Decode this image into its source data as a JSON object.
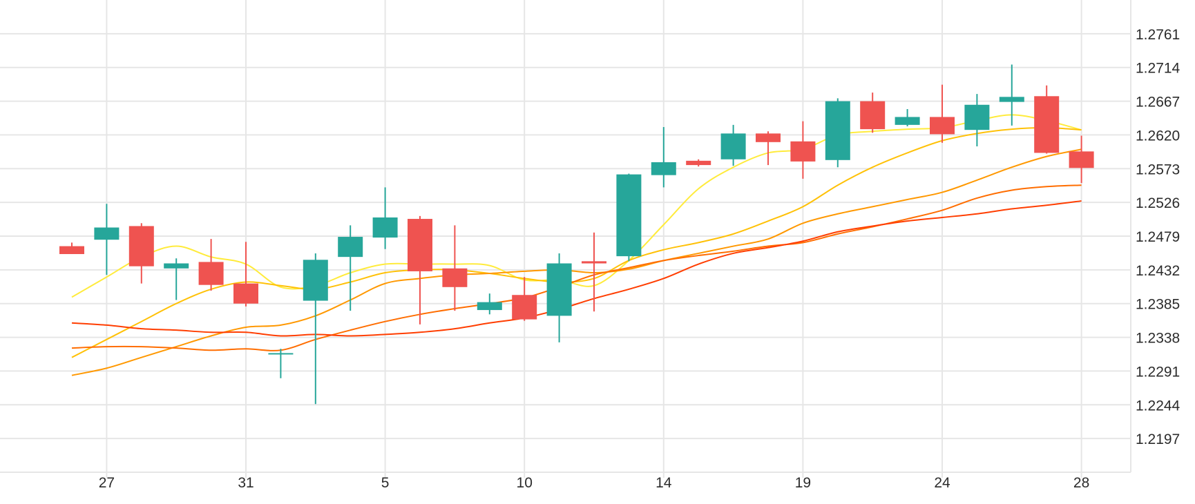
{
  "chart_data": {
    "type": "candlestick",
    "title": "",
    "xlabel": "",
    "ylabel": "",
    "y_axis_position": "right",
    "grid": true,
    "legend": "none",
    "ylim": [
      1.215,
      1.2808
    ],
    "y_ticks": [
      "1.2197",
      "1.2244",
      "1.2291",
      "1.2338",
      "1.2385",
      "1.2432",
      "1.2479",
      "1.2526",
      "1.2573",
      "1.2620",
      "1.2667",
      "1.2714",
      "1.2761"
    ],
    "x_ticks": [
      {
        "label": "27",
        "day": 1
      },
      {
        "label": "31",
        "day": 5
      },
      {
        "label": "5",
        "day": 9
      },
      {
        "label": "10",
        "day": 13
      },
      {
        "label": "14",
        "day": 17
      },
      {
        "label": "19",
        "day": 21
      },
      {
        "label": "24",
        "day": 25
      },
      {
        "label": "28",
        "day": 29
      }
    ],
    "colors": {
      "up": "#26a69a",
      "down": "#ef5350"
    },
    "candles": [
      {
        "day": 0.0,
        "open": 1.2465,
        "high": 1.247,
        "low": 1.2454,
        "close": 1.2454
      },
      {
        "day": 1.0,
        "open": 1.2474,
        "high": 1.2524,
        "low": 1.2425,
        "close": 1.2491
      },
      {
        "day": 2.0,
        "open": 1.2493,
        "high": 1.2497,
        "low": 1.2413,
        "close": 1.2437
      },
      {
        "day": 3.0,
        "open": 1.2434,
        "high": 1.2448,
        "low": 1.239,
        "close": 1.2441
      },
      {
        "day": 4.0,
        "open": 1.2443,
        "high": 1.2475,
        "low": 1.2403,
        "close": 1.2411
      },
      {
        "day": 5.0,
        "open": 1.2413,
        "high": 1.2471,
        "low": 1.2381,
        "close": 1.2385
      },
      {
        "day": 6.0,
        "open": 1.2316,
        "high": 1.2322,
        "low": 1.2281,
        "close": 1.2316
      },
      {
        "day": 7.0,
        "open": 1.2389,
        "high": 1.2455,
        "low": 1.2245,
        "close": 1.2446
      },
      {
        "day": 8.0,
        "open": 1.245,
        "high": 1.2494,
        "low": 1.2375,
        "close": 1.2478
      },
      {
        "day": 9.0,
        "open": 1.2477,
        "high": 1.2547,
        "low": 1.2461,
        "close": 1.2505
      },
      {
        "day": 10.0,
        "open": 1.2503,
        "high": 1.2507,
        "low": 1.2356,
        "close": 1.243
      },
      {
        "day": 11.0,
        "open": 1.2434,
        "high": 1.2494,
        "low": 1.2375,
        "close": 1.2408
      },
      {
        "day": 12.0,
        "open": 1.2376,
        "high": 1.2399,
        "low": 1.237,
        "close": 1.2387
      },
      {
        "day": 13.0,
        "open": 1.2397,
        "high": 1.2422,
        "low": 1.2361,
        "close": 1.2363
      },
      {
        "day": 14.0,
        "open": 1.2368,
        "high": 1.2455,
        "low": 1.2331,
        "close": 1.2441
      },
      {
        "day": 15.0,
        "open": 1.2444,
        "high": 1.2484,
        "low": 1.2374,
        "close": 1.2441
      },
      {
        "day": 16.0,
        "open": 1.2451,
        "high": 1.2566,
        "low": 1.2444,
        "close": 1.2565
      },
      {
        "day": 17.0,
        "open": 1.2564,
        "high": 1.2631,
        "low": 1.2547,
        "close": 1.2582
      },
      {
        "day": 18.0,
        "open": 1.2584,
        "high": 1.2586,
        "low": 1.2576,
        "close": 1.2578
      },
      {
        "day": 19.0,
        "open": 1.2586,
        "high": 1.2634,
        "low": 1.2577,
        "close": 1.2622
      },
      {
        "day": 20.0,
        "open": 1.2622,
        "high": 1.2625,
        "low": 1.2578,
        "close": 1.261
      },
      {
        "day": 21.0,
        "open": 1.2611,
        "high": 1.2639,
        "low": 1.2559,
        "close": 1.2583
      },
      {
        "day": 22.0,
        "open": 1.2585,
        "high": 1.2671,
        "low": 1.2575,
        "close": 1.2667
      },
      {
        "day": 23.0,
        "open": 1.2667,
        "high": 1.2679,
        "low": 1.2623,
        "close": 1.2628
      },
      {
        "day": 24.0,
        "open": 1.2634,
        "high": 1.2656,
        "low": 1.2632,
        "close": 1.2645
      },
      {
        "day": 25.0,
        "open": 1.2645,
        "high": 1.269,
        "low": 1.2609,
        "close": 1.2621
      },
      {
        "day": 26.0,
        "open": 1.2627,
        "high": 1.2677,
        "low": 1.2604,
        "close": 1.2662
      },
      {
        "day": 27.0,
        "open": 1.2666,
        "high": 1.2718,
        "low": 1.2633,
        "close": 1.2673
      },
      {
        "day": 28.0,
        "open": 1.2674,
        "high": 1.2689,
        "low": 1.2594,
        "close": 1.2595
      },
      {
        "day": 29.0,
        "open": 1.2597,
        "high": 1.2619,
        "low": 1.2553,
        "close": 1.2574
      }
    ],
    "series": [
      {
        "color": "#ffeb3b",
        "points": [
          [
            0,
            1.2394
          ],
          [
            1,
            1.2422
          ],
          [
            2,
            1.245
          ],
          [
            3,
            1.2465
          ],
          [
            4,
            1.245
          ],
          [
            5,
            1.244
          ],
          [
            6,
            1.2408
          ],
          [
            7,
            1.241
          ],
          [
            8,
            1.2428
          ],
          [
            9,
            1.244
          ],
          [
            10,
            1.244
          ],
          [
            11,
            1.244
          ],
          [
            12,
            1.2438
          ],
          [
            13,
            1.2418
          ],
          [
            14,
            1.2418
          ],
          [
            15,
            1.241
          ],
          [
            16,
            1.2445
          ],
          [
            17,
            1.2495
          ],
          [
            18,
            1.2545
          ],
          [
            19,
            1.2575
          ],
          [
            20,
            1.2595
          ],
          [
            21,
            1.26
          ],
          [
            22,
            1.262
          ],
          [
            23,
            1.2625
          ],
          [
            24,
            1.2628
          ],
          [
            25,
            1.263
          ],
          [
            26,
            1.264
          ],
          [
            27,
            1.2648
          ],
          [
            28,
            1.264
          ],
          [
            29,
            1.2627
          ]
        ]
      },
      {
        "color": "#ffc107",
        "points": [
          [
            0,
            1.231
          ],
          [
            1,
            1.2335
          ],
          [
            2,
            1.236
          ],
          [
            3,
            1.2385
          ],
          [
            4,
            1.2405
          ],
          [
            5,
            1.2415
          ],
          [
            6,
            1.241
          ],
          [
            7,
            1.2405
          ],
          [
            8,
            1.2415
          ],
          [
            9,
            1.2428
          ],
          [
            10,
            1.2432
          ],
          [
            11,
            1.2432
          ],
          [
            12,
            1.2427
          ],
          [
            13,
            1.242
          ],
          [
            14,
            1.2415
          ],
          [
            15,
            1.242
          ],
          [
            16,
            1.2445
          ],
          [
            17,
            1.246
          ],
          [
            18,
            1.247
          ],
          [
            19,
            1.2482
          ],
          [
            20,
            1.25
          ],
          [
            21,
            1.252
          ],
          [
            22,
            1.255
          ],
          [
            23,
            1.2575
          ],
          [
            24,
            1.2595
          ],
          [
            25,
            1.2612
          ],
          [
            26,
            1.2622
          ],
          [
            27,
            1.2628
          ],
          [
            28,
            1.263
          ],
          [
            29,
            1.2627
          ]
        ]
      },
      {
        "color": "#ff9800",
        "points": [
          [
            0,
            1.2285
          ],
          [
            1,
            1.2295
          ],
          [
            2,
            1.231
          ],
          [
            3,
            1.2325
          ],
          [
            4,
            1.234
          ],
          [
            5,
            1.2352
          ],
          [
            6,
            1.2355
          ],
          [
            7,
            1.2368
          ],
          [
            8,
            1.239
          ],
          [
            9,
            1.2413
          ],
          [
            10,
            1.242
          ],
          [
            11,
            1.2425
          ],
          [
            12,
            1.2427
          ],
          [
            13,
            1.243
          ],
          [
            14,
            1.2432
          ],
          [
            15,
            1.2428
          ],
          [
            16,
            1.2433
          ],
          [
            17,
            1.2445
          ],
          [
            18,
            1.2455
          ],
          [
            19,
            1.2465
          ],
          [
            20,
            1.2475
          ],
          [
            21,
            1.2497
          ],
          [
            22,
            1.251
          ],
          [
            23,
            1.252
          ],
          [
            24,
            1.253
          ],
          [
            25,
            1.254
          ],
          [
            26,
            1.2557
          ],
          [
            27,
            1.2575
          ],
          [
            28,
            1.259
          ],
          [
            29,
            1.26
          ]
        ]
      },
      {
        "color": "#ff6d00",
        "points": [
          [
            0,
            1.2323
          ],
          [
            1,
            1.2325
          ],
          [
            2,
            1.2325
          ],
          [
            3,
            1.2323
          ],
          [
            4,
            1.232
          ],
          [
            5,
            1.2322
          ],
          [
            6,
            1.232
          ],
          [
            7,
            1.2335
          ],
          [
            8,
            1.2348
          ],
          [
            9,
            1.236
          ],
          [
            10,
            1.237
          ],
          [
            11,
            1.2378
          ],
          [
            12,
            1.2385
          ],
          [
            13,
            1.2393
          ],
          [
            14,
            1.2408
          ],
          [
            15,
            1.2425
          ],
          [
            16,
            1.2435
          ],
          [
            17,
            1.2445
          ],
          [
            18,
            1.2452
          ],
          [
            19,
            1.2458
          ],
          [
            20,
            1.2465
          ],
          [
            21,
            1.247
          ],
          [
            22,
            1.2482
          ],
          [
            23,
            1.2492
          ],
          [
            24,
            1.2503
          ],
          [
            25,
            1.2515
          ],
          [
            26,
            1.2532
          ],
          [
            27,
            1.2543
          ],
          [
            28,
            1.2548
          ],
          [
            29,
            1.255
          ]
        ]
      },
      {
        "color": "#ff3d00",
        "points": [
          [
            0,
            1.2358
          ],
          [
            1,
            1.2355
          ],
          [
            2,
            1.235
          ],
          [
            3,
            1.2348
          ],
          [
            4,
            1.2345
          ],
          [
            5,
            1.2345
          ],
          [
            6,
            1.234
          ],
          [
            7,
            1.2342
          ],
          [
            8,
            1.234
          ],
          [
            9,
            1.2342
          ],
          [
            10,
            1.2345
          ],
          [
            11,
            1.235
          ],
          [
            12,
            1.2358
          ],
          [
            13,
            1.2365
          ],
          [
            14,
            1.2377
          ],
          [
            15,
            1.2392
          ],
          [
            16,
            1.2405
          ],
          [
            17,
            1.242
          ],
          [
            18,
            1.244
          ],
          [
            19,
            1.2455
          ],
          [
            20,
            1.2463
          ],
          [
            21,
            1.2472
          ],
          [
            22,
            1.2485
          ],
          [
            23,
            1.2493
          ],
          [
            24,
            1.25
          ],
          [
            25,
            1.2505
          ],
          [
            26,
            1.251
          ],
          [
            27,
            1.2517
          ],
          [
            28,
            1.2522
          ],
          [
            29,
            1.2528
          ]
        ]
      }
    ]
  }
}
